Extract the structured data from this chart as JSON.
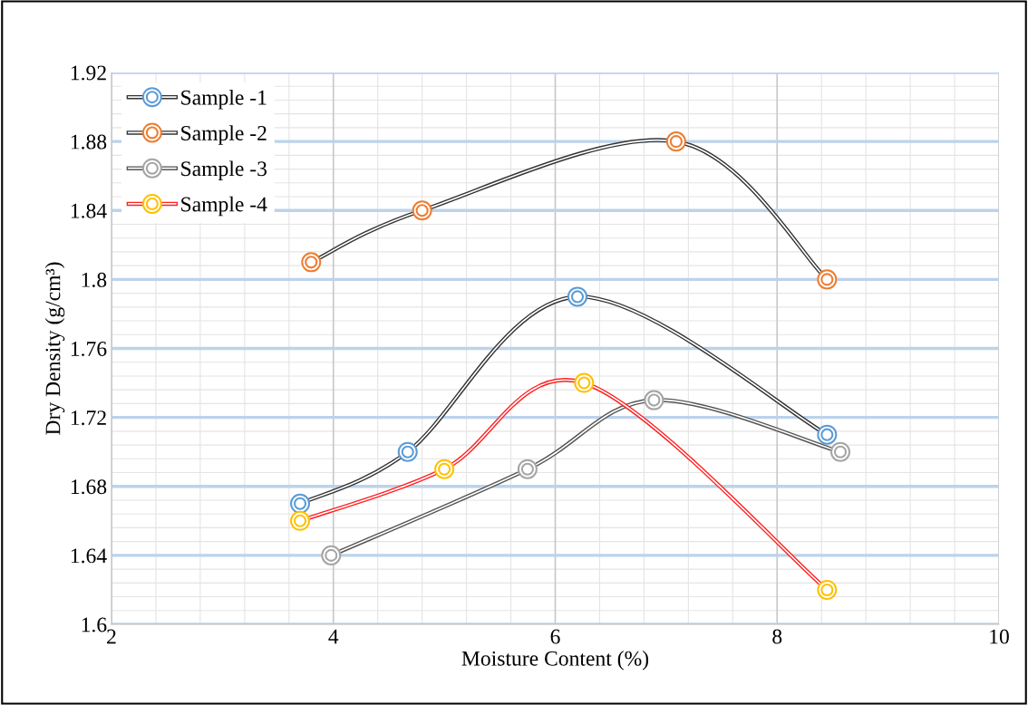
{
  "chart_data": {
    "type": "line",
    "xlabel": "Moisture Content (%)",
    "ylabel": "Dry Density (g/cm³)",
    "xlim": [
      2,
      10
    ],
    "xticks": [
      2,
      4,
      6,
      8,
      10
    ],
    "ylim": [
      1.6,
      1.92
    ],
    "yticks": [
      {
        "value": 1.6,
        "label": "1.6"
      },
      1.64,
      1.68,
      1.72,
      1.76,
      {
        "value": 1.8,
        "label": "1.8"
      },
      1.84,
      1.88,
      1.92
    ],
    "grid": true,
    "legend": "top left",
    "line_style": "solid",
    "marker": "circle",
    "series": [
      {
        "name": "Sample -1",
        "color": "#333333",
        "colors": [
          "#5b9bd5",
          "#5b9bd5",
          "#5b9bd5",
          "#5b9bd5"
        ],
        "x": [
          3.7,
          4.67,
          6.2,
          8.45
        ],
        "values": [
          1.67,
          1.7,
          1.79,
          1.71
        ]
      },
      {
        "name": "Sample -2",
        "color": "#333333",
        "colors": [
          "#ed7d31",
          "#ed7d31",
          "#ed7d31",
          "#ed7d31"
        ],
        "x": [
          3.8,
          4.8,
          7.09,
          8.45
        ],
        "values": [
          1.81,
          1.84,
          1.88,
          1.8
        ]
      },
      {
        "name": "Sample -3",
        "color": "#555555",
        "colors": [
          "#a5a5a5",
          "#a5a5a5",
          "#a5a5a5",
          "#a5a5a5"
        ],
        "x": [
          3.98,
          5.75,
          6.89,
          8.57
        ],
        "values": [
          1.64,
          1.69,
          1.73,
          1.7
        ]
      },
      {
        "name": "Sample -4",
        "color": "#ff2020",
        "colors": [
          "#ffc000",
          "#ffc000",
          "#ffc000",
          "#ffc000"
        ],
        "x": [
          3.7,
          5.0,
          6.26,
          8.45
        ],
        "values": [
          1.66,
          1.69,
          1.74,
          1.62
        ]
      }
    ]
  }
}
